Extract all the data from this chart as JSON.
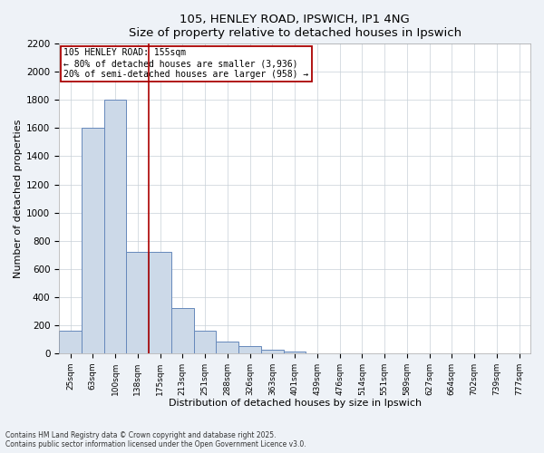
{
  "title1": "105, HENLEY ROAD, IPSWICH, IP1 4NG",
  "title2": "Size of property relative to detached houses in Ipswich",
  "xlabel": "Distribution of detached houses by size in Ipswich",
  "ylabel": "Number of detached properties",
  "categories": [
    "25sqm",
    "63sqm",
    "100sqm",
    "138sqm",
    "175sqm",
    "213sqm",
    "251sqm",
    "288sqm",
    "326sqm",
    "363sqm",
    "401sqm",
    "439sqm",
    "476sqm",
    "514sqm",
    "551sqm",
    "589sqm",
    "627sqm",
    "664sqm",
    "702sqm",
    "739sqm",
    "777sqm"
  ],
  "values": [
    160,
    1600,
    1800,
    720,
    720,
    320,
    160,
    80,
    50,
    25,
    10,
    0,
    0,
    0,
    0,
    0,
    0,
    0,
    0,
    0,
    0
  ],
  "bar_color": "#ccd9e8",
  "bar_edge_color": "#6688bb",
  "vline_color": "#aa0000",
  "annotation_text": "105 HENLEY ROAD: 155sqm\n← 80% of detached houses are smaller (3,936)\n20% of semi-detached houses are larger (958) →",
  "annotation_box_color": "#ffffff",
  "annotation_box_edge_color": "#aa0000",
  "ylim_max": 2200,
  "yticks": [
    0,
    200,
    400,
    600,
    800,
    1000,
    1200,
    1400,
    1600,
    1800,
    2000,
    2200
  ],
  "footer1": "Contains HM Land Registry data © Crown copyright and database right 2025.",
  "footer2": "Contains public sector information licensed under the Open Government Licence v3.0.",
  "bg_color": "#eef2f7",
  "plot_bg_color": "#ffffff",
  "grid_color": "#c8d0d8"
}
